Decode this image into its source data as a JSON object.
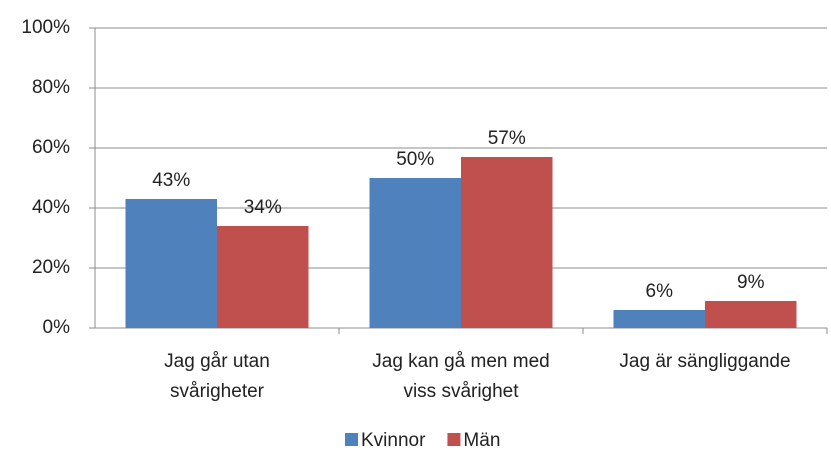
{
  "chart_data": {
    "type": "bar",
    "categories": [
      "Jag går utan\nsvårigheter",
      "Jag kan gå men med\nviss svårighet",
      "Jag är sängliggande"
    ],
    "series": [
      {
        "name": "Kvinnor",
        "color": "#4f81bd",
        "values": [
          43,
          50,
          6
        ],
        "value_labels": [
          "43%",
          "50%",
          "6%"
        ]
      },
      {
        "name": "Män",
        "color": "#c0504d",
        "values": [
          34,
          57,
          9
        ],
        "value_labels": [
          "34%",
          "57%",
          "9%"
        ]
      }
    ],
    "ylim": [
      0,
      100
    ],
    "yticks": [
      {
        "value": 0,
        "label": "0%"
      },
      {
        "value": 20,
        "label": "20%"
      },
      {
        "value": 40,
        "label": "40%"
      },
      {
        "value": 60,
        "label": "60%"
      },
      {
        "value": 80,
        "label": "80%"
      },
      {
        "value": 100,
        "label": "100%"
      }
    ],
    "grid": true,
    "legend": "bottom"
  }
}
